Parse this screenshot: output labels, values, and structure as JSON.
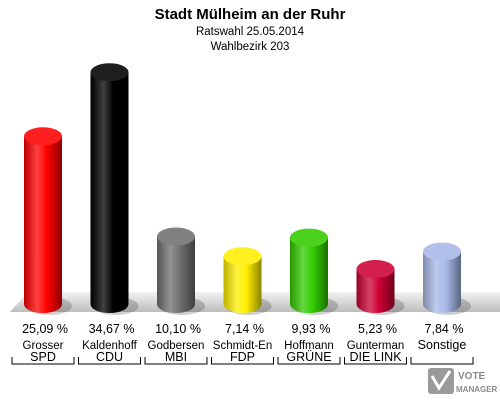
{
  "header": {
    "title": "Stadt Mülheim an der Ruhr",
    "subtitle_date": "Ratswahl 25.05.2014",
    "subtitle_district": "Wahlbezirk 203"
  },
  "logo": {
    "line1": "VOTE",
    "line2": "MANAGER"
  },
  "chart_data": {
    "type": "bar",
    "title": "Stadt Mülheim an der Ruhr",
    "subtitle": [
      "Ratswahl 25.05.2014",
      "Wahlbezirk 203"
    ],
    "categories": [
      "SPD",
      "CDU",
      "MBI",
      "FDP",
      "GRÜNE",
      "DIE LINK",
      "Sonstige"
    ],
    "candidates": [
      "Grosser",
      "Kaldenhoff",
      "Godbersen",
      "Schmidt-En",
      "Hoffmann",
      "Gunterman",
      ""
    ],
    "values": [
      25.09,
      34.67,
      10.1,
      7.14,
      9.93,
      5.23,
      7.84
    ],
    "value_labels": [
      "25,09 %",
      "34,67 %",
      "10,10 %",
      "7,14 %",
      "9,93 %",
      "5,23 %",
      "7,84 %"
    ],
    "colors": [
      "#ff0000",
      "#000000",
      "#707070",
      "#ffee00",
      "#33cc00",
      "#cc0033",
      "#a8b8e8"
    ],
    "ylim": [
      0,
      35
    ],
    "grid": false,
    "legend": "none"
  }
}
